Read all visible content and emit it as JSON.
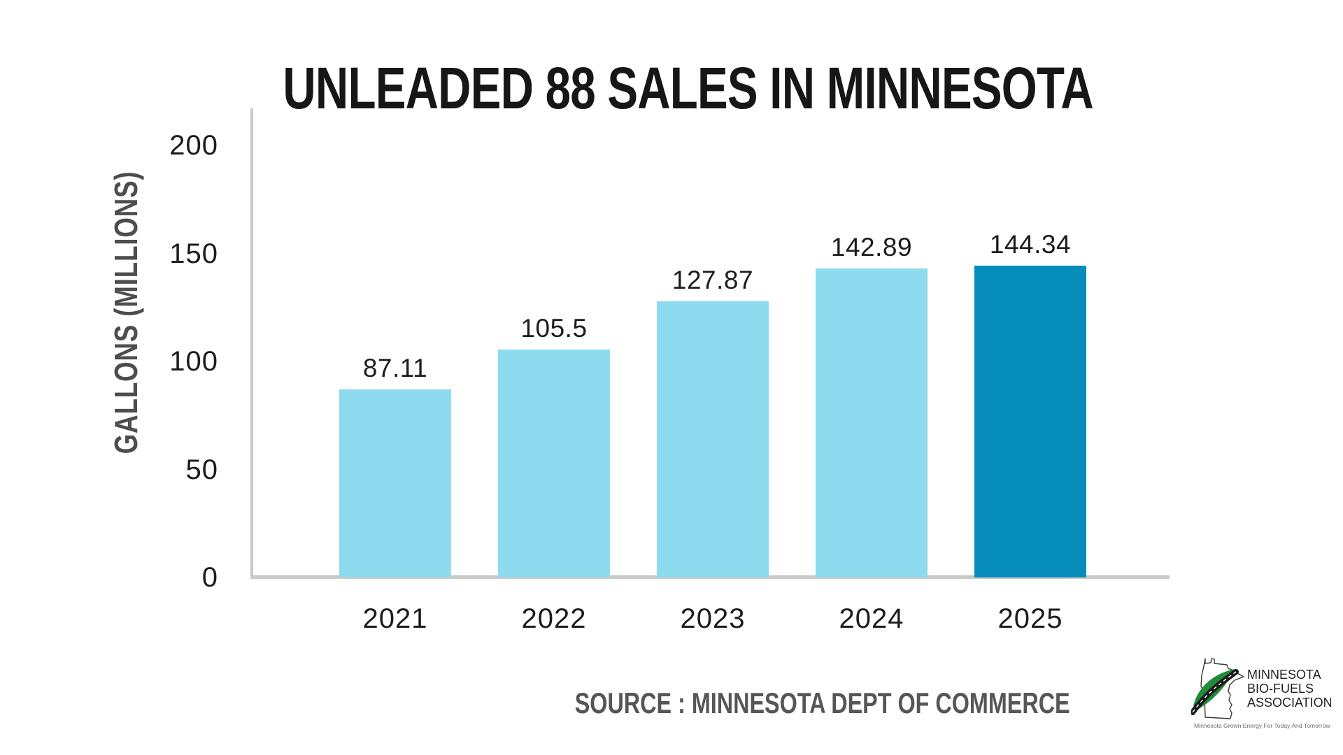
{
  "title": "UNLEADED 88 SALES IN MINNESOTA",
  "source_caption": "SOURCE : MINNESOTA DEPT OF COMMERCE",
  "chart_data": {
    "type": "bar",
    "title": "UNLEADED 88 SALES IN MINNESOTA",
    "categories": [
      "2021",
      "2022",
      "2023",
      "2024",
      "2025"
    ],
    "values": [
      87.11,
      105.5,
      127.87,
      142.89,
      144.34
    ],
    "value_labels": [
      "87.11",
      "105.5",
      "127.87",
      "142.89",
      "144.34"
    ],
    "xlabel": "",
    "ylabel": "GALLONS (MILLIONS)",
    "yticks": [
      0,
      50,
      100,
      150,
      200
    ],
    "ytick_labels": [
      "0",
      "50",
      "100",
      "150",
      "200"
    ],
    "ylim": [
      0,
      200
    ],
    "grid": false,
    "legend": "none",
    "bar_colors": [
      "#8DDBEE",
      "#8DDBEE",
      "#8DDBEE",
      "#8DDBEE",
      "#068CBB"
    ],
    "highlight_index": 4
  },
  "colors": {
    "bar_light": "#8DDBEE",
    "bar_dark": "#068CBB",
    "axis_gray": "#C9C9C9",
    "text_dark": "#1C1C1C",
    "label_gray": "#4D4D4D",
    "source_gray": "#565656",
    "logo_green": "#1F8B3B"
  },
  "logo": {
    "line1": "MINNESOTA",
    "line2": "BIO-FUELS",
    "line3": "ASSOCIATION",
    "tagline": "Minnesota Grown Energy For Today And Tomorrow"
  }
}
